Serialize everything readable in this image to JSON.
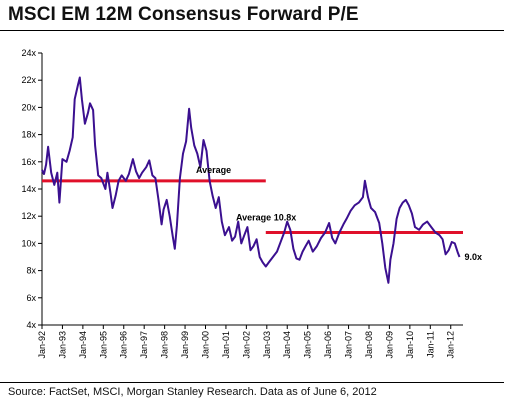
{
  "title": "MSCI EM 12M Consensus Forward P/E",
  "source": "Source: FactSet, MSCI, Morgan Stanley Research. Data as of June 6, 2012",
  "colors": {
    "series": "#3b1090",
    "average": "#e0102a",
    "axis": "#000000"
  },
  "chart_data": {
    "type": "line",
    "title": "MSCI EM 12M Consensus Forward P/E",
    "xlabel": "",
    "ylabel": "",
    "grid": false,
    "ylim": [
      4,
      24
    ],
    "xlim": [
      1992.0,
      2012.6
    ],
    "y_ticks": [
      "4x",
      "6x",
      "8x",
      "10x",
      "12x",
      "14x",
      "16x",
      "18x",
      "20x",
      "22x",
      "24x"
    ],
    "x_ticks": [
      "Jan-92",
      "Jan-93",
      "Jan-94",
      "Jan-95",
      "Jan-96",
      "Jan-97",
      "Jan-98",
      "Jan-99",
      "Jan-00",
      "Jan-01",
      "Jan-02",
      "Jan-03",
      "Jan-04",
      "Jan-05",
      "Jan-06",
      "Jan-07",
      "Jan-08",
      "Jan-09",
      "Jan-10",
      "Jan-11",
      "Jan-12"
    ],
    "series": [
      {
        "values": [
          [
            1992.0,
            15.4
          ],
          [
            1992.1,
            15.1
          ],
          [
            1992.2,
            15.8
          ],
          [
            1992.3,
            17.1
          ],
          [
            1992.45,
            15.2
          ],
          [
            1992.6,
            14.3
          ],
          [
            1992.75,
            15.2
          ],
          [
            1992.85,
            13.0
          ],
          [
            1993.0,
            16.2
          ],
          [
            1993.2,
            16.0
          ],
          [
            1993.35,
            16.8
          ],
          [
            1993.5,
            17.8
          ],
          [
            1993.6,
            20.6
          ],
          [
            1993.75,
            21.6
          ],
          [
            1993.85,
            22.2
          ],
          [
            1993.95,
            20.6
          ],
          [
            1994.1,
            18.8
          ],
          [
            1994.25,
            19.6
          ],
          [
            1994.35,
            20.3
          ],
          [
            1994.5,
            19.8
          ],
          [
            1994.6,
            17.2
          ],
          [
            1994.75,
            15.0
          ],
          [
            1994.9,
            14.8
          ],
          [
            1995.1,
            14.0
          ],
          [
            1995.2,
            15.2
          ],
          [
            1995.35,
            13.7
          ],
          [
            1995.45,
            12.6
          ],
          [
            1995.6,
            13.5
          ],
          [
            1995.75,
            14.6
          ],
          [
            1995.9,
            15.0
          ],
          [
            1996.1,
            14.6
          ],
          [
            1996.25,
            15.1
          ],
          [
            1996.45,
            16.2
          ],
          [
            1996.6,
            15.3
          ],
          [
            1996.75,
            14.8
          ],
          [
            1996.9,
            15.2
          ],
          [
            1997.1,
            15.6
          ],
          [
            1997.25,
            16.1
          ],
          [
            1997.4,
            15.0
          ],
          [
            1997.55,
            14.8
          ],
          [
            1997.7,
            13.2
          ],
          [
            1997.85,
            11.4
          ],
          [
            1997.95,
            12.5
          ],
          [
            1998.1,
            13.2
          ],
          [
            1998.25,
            12.0
          ],
          [
            1998.4,
            10.5
          ],
          [
            1998.5,
            9.6
          ],
          [
            1998.6,
            11.3
          ],
          [
            1998.75,
            14.8
          ],
          [
            1998.9,
            16.6
          ],
          [
            1999.05,
            17.5
          ],
          [
            1999.2,
            19.9
          ],
          [
            1999.3,
            18.5
          ],
          [
            1999.45,
            17.2
          ],
          [
            1999.6,
            16.6
          ],
          [
            1999.75,
            15.6
          ],
          [
            1999.9,
            17.6
          ],
          [
            2000.05,
            16.8
          ],
          [
            2000.2,
            14.6
          ],
          [
            2000.35,
            13.5
          ],
          [
            2000.5,
            12.6
          ],
          [
            2000.65,
            13.4
          ],
          [
            2000.8,
            11.6
          ],
          [
            2000.95,
            10.6
          ],
          [
            2001.15,
            11.2
          ],
          [
            2001.3,
            10.2
          ],
          [
            2001.45,
            10.5
          ],
          [
            2001.6,
            11.6
          ],
          [
            2001.75,
            10.0
          ],
          [
            2001.9,
            10.6
          ],
          [
            2002.05,
            11.2
          ],
          [
            2002.2,
            9.5
          ],
          [
            2002.35,
            9.8
          ],
          [
            2002.5,
            10.3
          ],
          [
            2002.65,
            9.0
          ],
          [
            2002.8,
            8.6
          ],
          [
            2002.95,
            8.3
          ],
          [
            2003.1,
            8.6
          ],
          [
            2003.3,
            9.0
          ],
          [
            2003.5,
            9.4
          ],
          [
            2003.7,
            10.2
          ],
          [
            2003.85,
            10.8
          ],
          [
            2004.0,
            11.6
          ],
          [
            2004.15,
            11.0
          ],
          [
            2004.3,
            9.6
          ],
          [
            2004.45,
            8.9
          ],
          [
            2004.6,
            8.8
          ],
          [
            2004.75,
            9.4
          ],
          [
            2004.9,
            9.8
          ],
          [
            2005.05,
            10.2
          ],
          [
            2005.25,
            9.4
          ],
          [
            2005.45,
            9.8
          ],
          [
            2005.65,
            10.4
          ],
          [
            2005.85,
            10.8
          ],
          [
            2006.05,
            11.5
          ],
          [
            2006.2,
            10.4
          ],
          [
            2006.35,
            10.0
          ],
          [
            2006.55,
            10.8
          ],
          [
            2006.75,
            11.4
          ],
          [
            2006.9,
            11.8
          ],
          [
            2007.1,
            12.4
          ],
          [
            2007.3,
            12.8
          ],
          [
            2007.5,
            13.0
          ],
          [
            2007.7,
            13.4
          ],
          [
            2007.8,
            14.6
          ],
          [
            2007.95,
            13.4
          ],
          [
            2008.1,
            12.6
          ],
          [
            2008.3,
            12.3
          ],
          [
            2008.5,
            11.5
          ],
          [
            2008.65,
            10.0
          ],
          [
            2008.8,
            8.2
          ],
          [
            2008.95,
            7.1
          ],
          [
            2009.05,
            8.8
          ],
          [
            2009.2,
            10.0
          ],
          [
            2009.35,
            11.8
          ],
          [
            2009.5,
            12.6
          ],
          [
            2009.65,
            13.0
          ],
          [
            2009.8,
            13.2
          ],
          [
            2009.95,
            12.8
          ],
          [
            2010.1,
            12.2
          ],
          [
            2010.25,
            11.2
          ],
          [
            2010.45,
            11.0
          ],
          [
            2010.65,
            11.4
          ],
          [
            2010.85,
            11.6
          ],
          [
            2011.05,
            11.2
          ],
          [
            2011.25,
            10.8
          ],
          [
            2011.45,
            10.6
          ],
          [
            2011.6,
            10.3
          ],
          [
            2011.75,
            9.2
          ],
          [
            2011.9,
            9.5
          ],
          [
            2012.05,
            10.1
          ],
          [
            2012.2,
            10.0
          ],
          [
            2012.35,
            9.3
          ],
          [
            2012.43,
            9.0
          ]
        ]
      }
    ],
    "average_lines": [
      {
        "label": "Average",
        "value": 14.6,
        "from": 1992.0,
        "to": 2002.95
      },
      {
        "label": "Average 10.8x",
        "value": 10.8,
        "from": 2002.95,
        "to": 2012.6
      }
    ],
    "annotations": [
      {
        "text": "9.0x",
        "x": 2012.43,
        "y": 9.0
      }
    ]
  }
}
